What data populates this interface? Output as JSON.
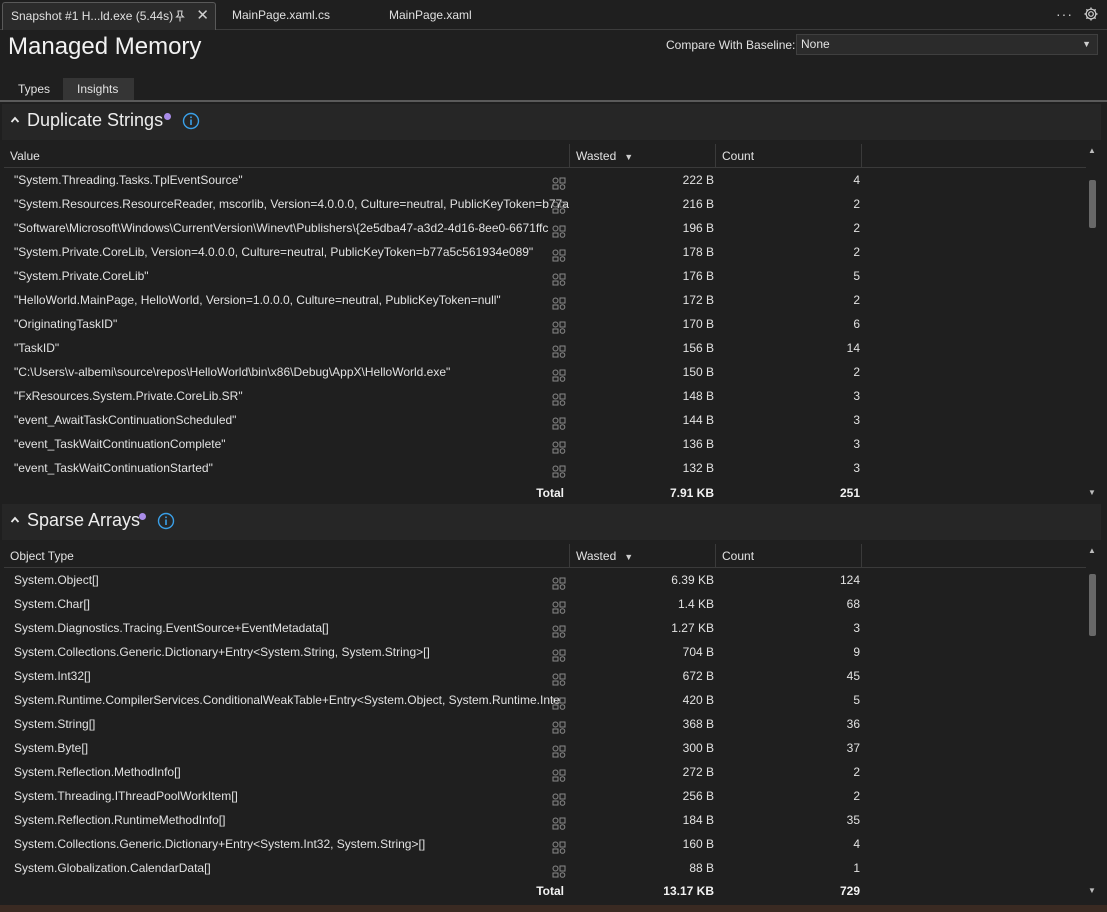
{
  "tabs": {
    "active": "Snapshot #1 H...ld.exe (5.44s)",
    "second": "MainPage.xaml.cs",
    "third": "MainPage.xaml",
    "more": "···"
  },
  "header": {
    "title": "Managed Memory",
    "baseline_label": "Compare With Baseline:",
    "baseline_value": "None"
  },
  "view_tabs": {
    "types": "Types",
    "insights": "Insights"
  },
  "duplicate_strings": {
    "title": "Duplicate Strings",
    "columns": {
      "value": "Value",
      "wasted": "Wasted",
      "count": "Count"
    },
    "rows": [
      {
        "value": "\"System.Threading.Tasks.TplEventSource\"",
        "wasted": "222 B",
        "count": "4"
      },
      {
        "value": "\"System.Resources.ResourceReader, mscorlib, Version=4.0.0.0, Culture=neutral, PublicKeyToken=b77a",
        "wasted": "216 B",
        "count": "2"
      },
      {
        "value": "\"Software\\Microsoft\\Windows\\CurrentVersion\\Winevt\\Publishers\\{2e5dba47-a3d2-4d16-8ee0-6671ffc",
        "wasted": "196 B",
        "count": "2"
      },
      {
        "value": "\"System.Private.CoreLib, Version=4.0.0.0, Culture=neutral, PublicKeyToken=b77a5c561934e089\"",
        "wasted": "178 B",
        "count": "2"
      },
      {
        "value": "\"System.Private.CoreLib\"",
        "wasted": "176 B",
        "count": "5"
      },
      {
        "value": "\"HelloWorld.MainPage, HelloWorld, Version=1.0.0.0, Culture=neutral, PublicKeyToken=null\"",
        "wasted": "172 B",
        "count": "2"
      },
      {
        "value": "\"OriginatingTaskID\"",
        "wasted": "170 B",
        "count": "6"
      },
      {
        "value": "\"TaskID\"",
        "wasted": "156 B",
        "count": "14"
      },
      {
        "value": "\"C:\\Users\\v-albemi\\source\\repos\\HelloWorld\\bin\\x86\\Debug\\AppX\\HelloWorld.exe\"",
        "wasted": "150 B",
        "count": "2"
      },
      {
        "value": "\"FxResources.System.Private.CoreLib.SR\"",
        "wasted": "148 B",
        "count": "3"
      },
      {
        "value": "\"event_AwaitTaskContinuationScheduled\"",
        "wasted": "144 B",
        "count": "3"
      },
      {
        "value": "\"event_TaskWaitContinuationComplete\"",
        "wasted": "136 B",
        "count": "3"
      },
      {
        "value": "\"event_TaskWaitContinuationStarted\"",
        "wasted": "132 B",
        "count": "3"
      }
    ],
    "total": {
      "label": "Total",
      "wasted": "7.91 KB",
      "count": "251"
    }
  },
  "sparse_arrays": {
    "title": "Sparse Arrays",
    "columns": {
      "value": "Object Type",
      "wasted": "Wasted",
      "count": "Count"
    },
    "rows": [
      {
        "value": "System.Object[]",
        "wasted": "6.39 KB",
        "count": "124"
      },
      {
        "value": "System.Char[]",
        "wasted": "1.4 KB",
        "count": "68"
      },
      {
        "value": "System.Diagnostics.Tracing.EventSource+EventMetadata[]",
        "wasted": "1.27 KB",
        "count": "3"
      },
      {
        "value": "System.Collections.Generic.Dictionary+Entry<System.String, System.String>[]",
        "wasted": "704 B",
        "count": "9"
      },
      {
        "value": "System.Int32[]",
        "wasted": "672 B",
        "count": "45"
      },
      {
        "value": "System.Runtime.CompilerServices.ConditionalWeakTable+Entry<System.Object, System.Runtime.Inte",
        "wasted": "420 B",
        "count": "5"
      },
      {
        "value": "System.String[]",
        "wasted": "368 B",
        "count": "36"
      },
      {
        "value": "System.Byte[]",
        "wasted": "300 B",
        "count": "37"
      },
      {
        "value": "System.Reflection.MethodInfo[]",
        "wasted": "272 B",
        "count": "2"
      },
      {
        "value": "System.Threading.IThreadPoolWorkItem[]",
        "wasted": "256 B",
        "count": "2"
      },
      {
        "value": "System.Reflection.RuntimeMethodInfo[]",
        "wasted": "184 B",
        "count": "35"
      },
      {
        "value": "System.Collections.Generic.Dictionary+Entry<System.Int32, System.String>[]",
        "wasted": "160 B",
        "count": "4"
      },
      {
        "value": "System.Globalization.CalendarData[]",
        "wasted": "88 B",
        "count": "1"
      }
    ],
    "total": {
      "label": "Total",
      "wasted": "13.17 KB",
      "count": "729"
    }
  }
}
